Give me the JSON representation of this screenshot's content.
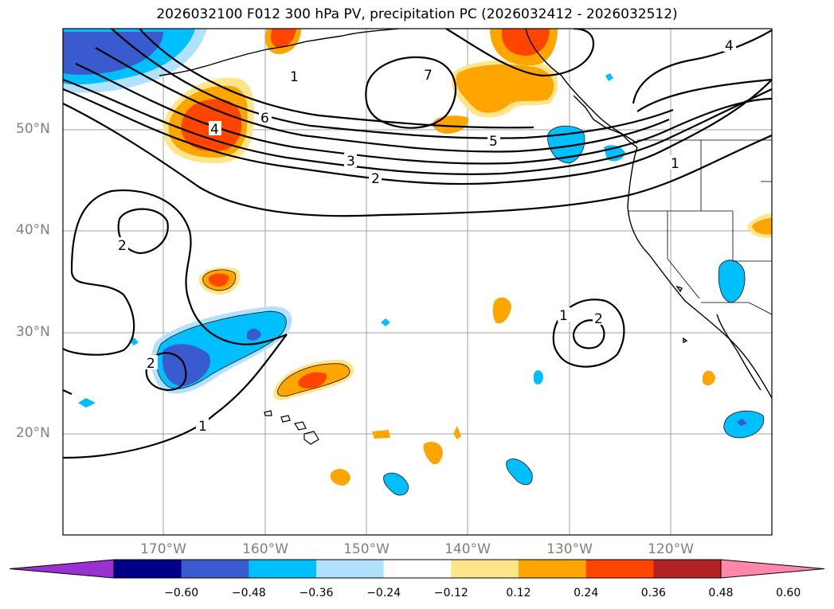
{
  "title": "2026032100 F012 300 hPa PV, precipitation PC (2026032412 - 2026032512)",
  "lat_labels": [
    "50°N",
    "40°N",
    "30°N",
    "20°N"
  ],
  "lon_labels": [
    "170°W",
    "160°W",
    "150°W",
    "140°W",
    "130°W",
    "120°W"
  ],
  "contour_labels": [
    "1",
    "2",
    "3",
    "4",
    "5",
    "6",
    "7",
    "2",
    "1",
    "2",
    "1",
    "2",
    "4",
    "1"
  ],
  "colorbar": {
    "labels": [
      "−0.60",
      "−0.48",
      "−0.36",
      "−0.24",
      "−0.12",
      "0.12",
      "0.24",
      "0.36",
      "0.48",
      "0.60"
    ],
    "colors": [
      "#9b30d0",
      "#00008b",
      "#3a5bd0",
      "#00bfff",
      "#b0e2ff",
      "#ffffff",
      "#ffe58a",
      "#ffa500",
      "#ff4500",
      "#b22222",
      "#ff88aa"
    ]
  },
  "colors": {
    "land_outline": "#000000",
    "grid": "#a0a0a0",
    "contour": "#000000"
  }
}
